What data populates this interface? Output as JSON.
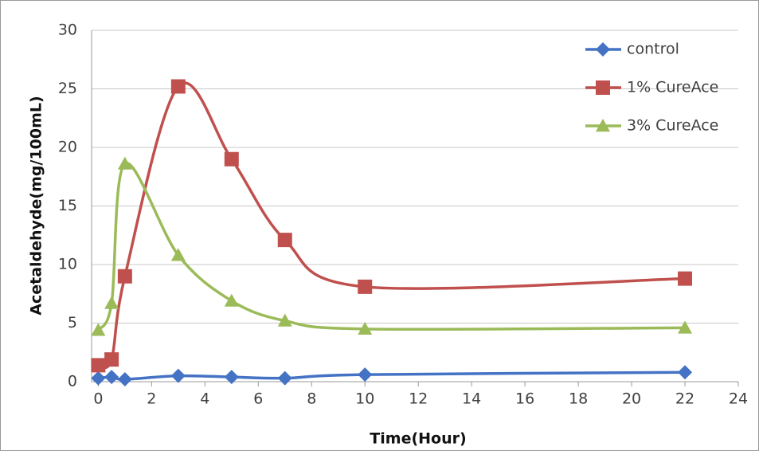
{
  "chart_data": {
    "type": "line",
    "x_label": "Time(Hour)",
    "y_label": "Acetaldehyde(mg/100mL)",
    "x": [
      0,
      0.5,
      1,
      3,
      5,
      7,
      10,
      22
    ],
    "series": [
      {
        "name": "control",
        "color": "#4472c4",
        "marker": "diamond",
        "values": [
          0.3,
          0.4,
          0.2,
          0.5,
          0.4,
          0.3,
          0.6,
          0.8
        ]
      },
      {
        "name": "1% CureAce",
        "color": "#c0504d",
        "marker": "square",
        "values": [
          1.4,
          1.9,
          9.0,
          25.2,
          19.0,
          12.1,
          8.1,
          8.8
        ]
      },
      {
        "name": "3% CureAce",
        "color": "#9bbb59",
        "marker": "triangle",
        "values": [
          4.4,
          6.7,
          18.6,
          10.8,
          6.9,
          5.2,
          4.5,
          4.6
        ]
      }
    ],
    "xlim": [
      -0.25,
      24
    ],
    "xticks": [
      0,
      2,
      4,
      6,
      8,
      10,
      12,
      14,
      16,
      18,
      20,
      22,
      24
    ],
    "ylim": [
      0,
      30
    ],
    "yticks": [
      0,
      5,
      10,
      15,
      20,
      25,
      30
    ],
    "grid": true,
    "smooth": true,
    "legend": "upper right"
  }
}
